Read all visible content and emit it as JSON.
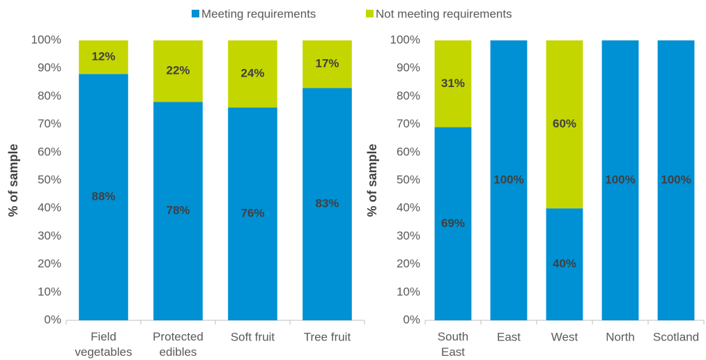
{
  "chart_data": [
    {
      "type": "bar",
      "stacked": true,
      "y_label": "% of sample",
      "categories": [
        "Field vegetables",
        "Protected edibles",
        "Soft fruit",
        "Tree fruit"
      ],
      "series": [
        {
          "name": "Meeting requirements",
          "color": "#0090d4",
          "values": [
            88,
            78,
            76,
            83
          ],
          "value_labels": [
            "88%",
            "78%",
            "76%",
            "83%"
          ]
        },
        {
          "name": "Not meeting requirements",
          "color": "#c4d600",
          "values": [
            12,
            22,
            24,
            17
          ],
          "value_labels": [
            "12%",
            "22%",
            "24%",
            "17%"
          ]
        }
      ],
      "ylim": [
        0,
        100
      ],
      "yticks": [
        {
          "value": 0,
          "label": "0%"
        },
        {
          "value": 10,
          "label": "10%"
        },
        {
          "value": 20,
          "label": "20%"
        },
        {
          "value": 30,
          "label": "30%"
        },
        {
          "value": 40,
          "label": "40%"
        },
        {
          "value": 50,
          "label": "50%"
        },
        {
          "value": 60,
          "label": "60%"
        },
        {
          "value": 70,
          "label": "70%"
        },
        {
          "value": 80,
          "label": "80%"
        },
        {
          "value": 90,
          "label": "90%"
        },
        {
          "value": 100,
          "label": "100%"
        }
      ]
    },
    {
      "type": "bar",
      "stacked": true,
      "y_label": "% of sample",
      "categories": [
        "South East",
        "East",
        "West",
        "North",
        "Scotland"
      ],
      "series": [
        {
          "color": "#0090d4",
          "values": [
            69,
            100,
            40,
            100,
            100
          ],
          "value_labels": [
            "69%",
            "100%",
            "40%",
            "100%",
            "100%"
          ]
        },
        {
          "color": "#c4d600",
          "values": [
            31,
            0,
            60,
            0,
            0
          ],
          "value_labels": [
            "31%",
            null,
            "60%",
            null,
            null
          ]
        }
      ],
      "ylim": [
        0,
        100
      ],
      "yticks": [
        {
          "value": 0,
          "label": "0%"
        },
        {
          "value": 10,
          "label": "10%"
        },
        {
          "value": 20,
          "label": "20%"
        },
        {
          "value": 30,
          "label": "30%"
        },
        {
          "value": 40,
          "label": "40%"
        },
        {
          "value": 50,
          "label": "50%"
        },
        {
          "value": 60,
          "label": "60%"
        },
        {
          "value": 70,
          "label": "70%"
        },
        {
          "value": 80,
          "label": "80%"
        },
        {
          "value": 90,
          "label": "90%"
        },
        {
          "value": 100,
          "label": "100%"
        }
      ]
    }
  ]
}
